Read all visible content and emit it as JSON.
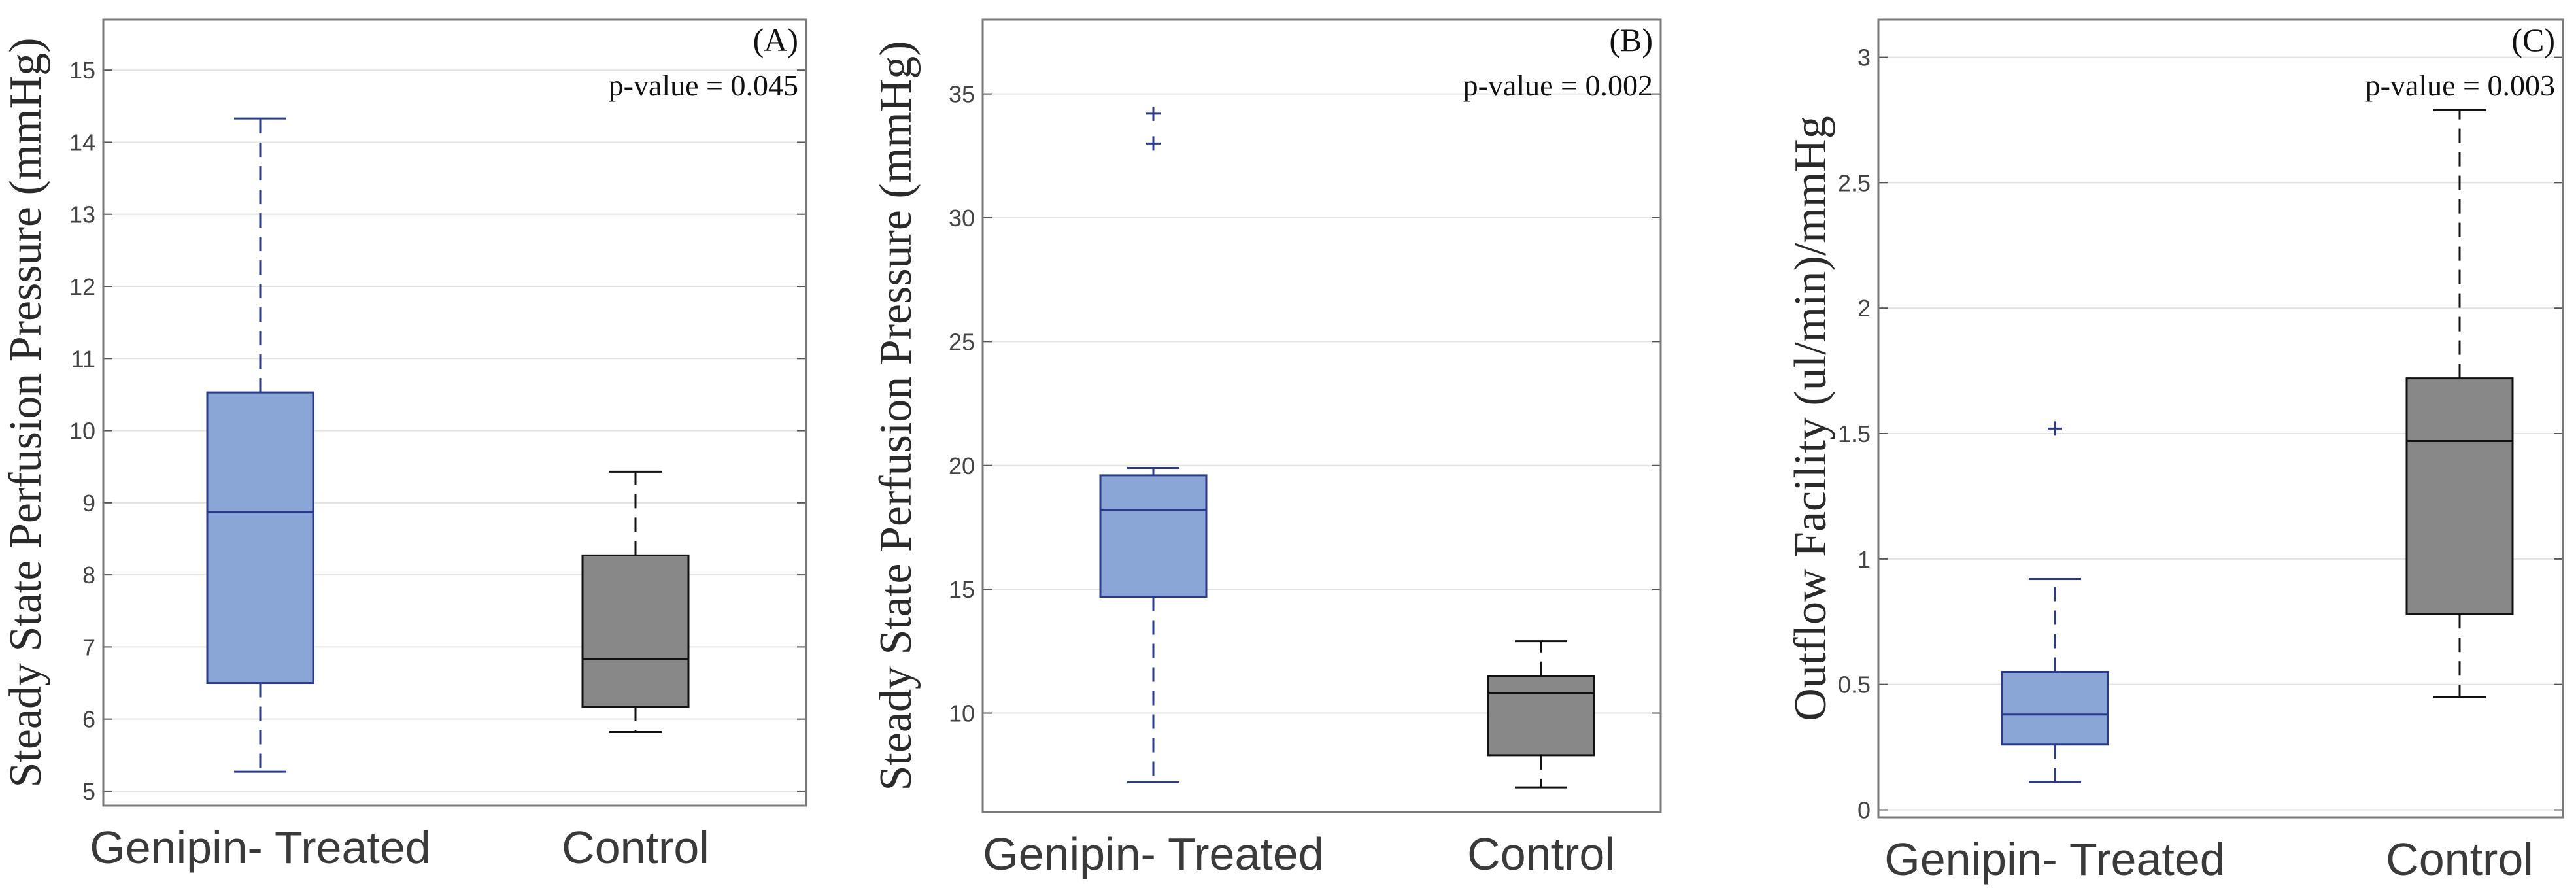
{
  "chart_data": [
    {
      "type": "box",
      "panel_label": "(A)",
      "p_value_text": "p-value = 0.045",
      "ylabel": "Steady State Perfusion Pressure (mmHg)",
      "xlabel": "",
      "ylim": [
        4.8,
        15.7
      ],
      "yticks": [
        5,
        6,
        7,
        8,
        9,
        10,
        11,
        12,
        13,
        14,
        15
      ],
      "grid": true,
      "categories": [
        "Genipin- Treated",
        "Control"
      ],
      "boxes": [
        {
          "name": "Genipin- Treated",
          "min": 5.27,
          "q1": 6.5,
          "median": 8.87,
          "q3": 10.53,
          "max": 14.33,
          "outliers": [],
          "color": "#8aa6d6",
          "edge": "#2b3a8c"
        },
        {
          "name": "Control",
          "min": 5.82,
          "q1": 6.17,
          "median": 6.83,
          "q3": 8.27,
          "max": 9.43,
          "outliers": [],
          "color": "#888888",
          "edge": "#111111"
        }
      ]
    },
    {
      "type": "box",
      "panel_label": "(B)",
      "p_value_text": "p-value = 0.002",
      "ylabel": "Steady State Perfusion Pressure (mmHg)",
      "xlabel": "",
      "ylim": [
        6.0,
        38.0
      ],
      "yticks": [
        10,
        15,
        20,
        25,
        30,
        35
      ],
      "grid": true,
      "categories": [
        "Genipin- Treated",
        "Control"
      ],
      "boxes": [
        {
          "name": "Genipin- Treated",
          "min": 7.2,
          "q1": 14.7,
          "median": 18.2,
          "q3": 19.6,
          "max": 19.9,
          "outliers": [
            34.2,
            33.0
          ],
          "color": "#8aa6d6",
          "edge": "#2b3a8c"
        },
        {
          "name": "Control",
          "min": 7.0,
          "q1": 8.3,
          "median": 10.8,
          "q3": 11.5,
          "max": 12.9,
          "outliers": [],
          "color": "#888888",
          "edge": "#111111"
        }
      ]
    },
    {
      "type": "box",
      "panel_label": "(C)",
      "p_value_text": "p-value = 0.003",
      "ylabel": "Outflow Facility (ul/min)/mmHg",
      "xlabel": "",
      "ylim": [
        -0.03,
        3.15
      ],
      "yticks": [
        0,
        0.5,
        1,
        1.5,
        2,
        2.5,
        3
      ],
      "ytick_labels": [
        "0",
        "0.5",
        "1",
        "1.5",
        "2",
        "2.5",
        "3"
      ],
      "grid": true,
      "categories": [
        "Genipin- Treated",
        "Control"
      ],
      "boxes": [
        {
          "name": "Genipin- Treated",
          "min": 0.11,
          "q1": 0.26,
          "median": 0.38,
          "q3": 0.55,
          "max": 0.92,
          "outliers": [
            1.52
          ],
          "color": "#8aa6d6",
          "edge": "#2b3a8c"
        },
        {
          "name": "Control",
          "min": 0.45,
          "q1": 0.78,
          "median": 1.47,
          "q3": 1.72,
          "max": 2.79,
          "outliers": [],
          "color": "#888888",
          "edge": "#111111"
        }
      ]
    }
  ]
}
